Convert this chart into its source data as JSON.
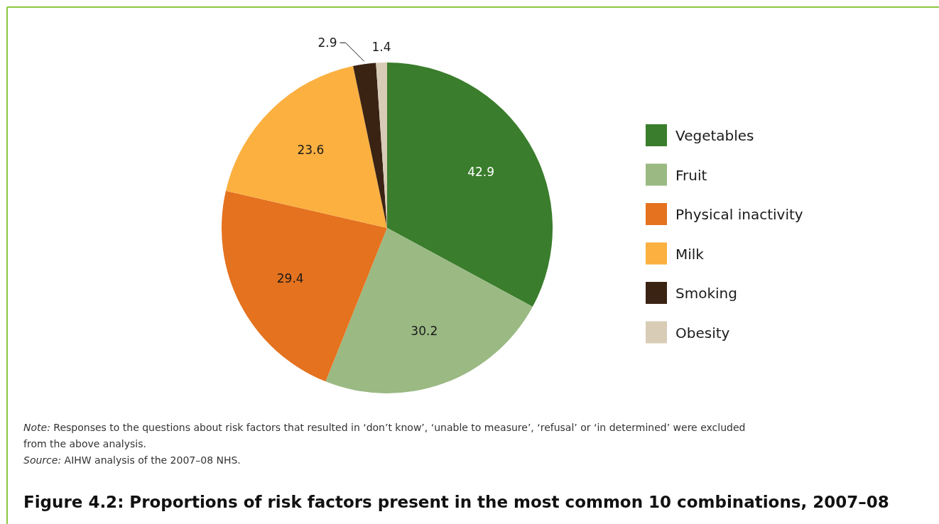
{
  "chart_data": {
    "type": "pie",
    "title": "Figure 4.2: Proportions of risk factors present in the most common 10 combinations, 2007–08",
    "categories": [
      "Vegetables",
      "Fruit",
      "Physical inactivity",
      "Milk",
      "Smoking",
      "Obesity"
    ],
    "values": [
      42.9,
      30.2,
      29.4,
      23.6,
      2.9,
      1.4
    ],
    "colors": [
      "#3a7d2c",
      "#9ab983",
      "#e4721f",
      "#fbb040",
      "#3b2314",
      "#d8ccb6"
    ],
    "data_labels": true,
    "legend": "right",
    "annotations": [
      "Note: Responses to the questions about risk factors that resulted in ‘don’t know’, ‘unable to measure’, ‘refusal’ or ‘in determined’ were excluded from the above analysis.",
      "Source: AIHW analysis of the 2007–08 NHS."
    ]
  }
}
